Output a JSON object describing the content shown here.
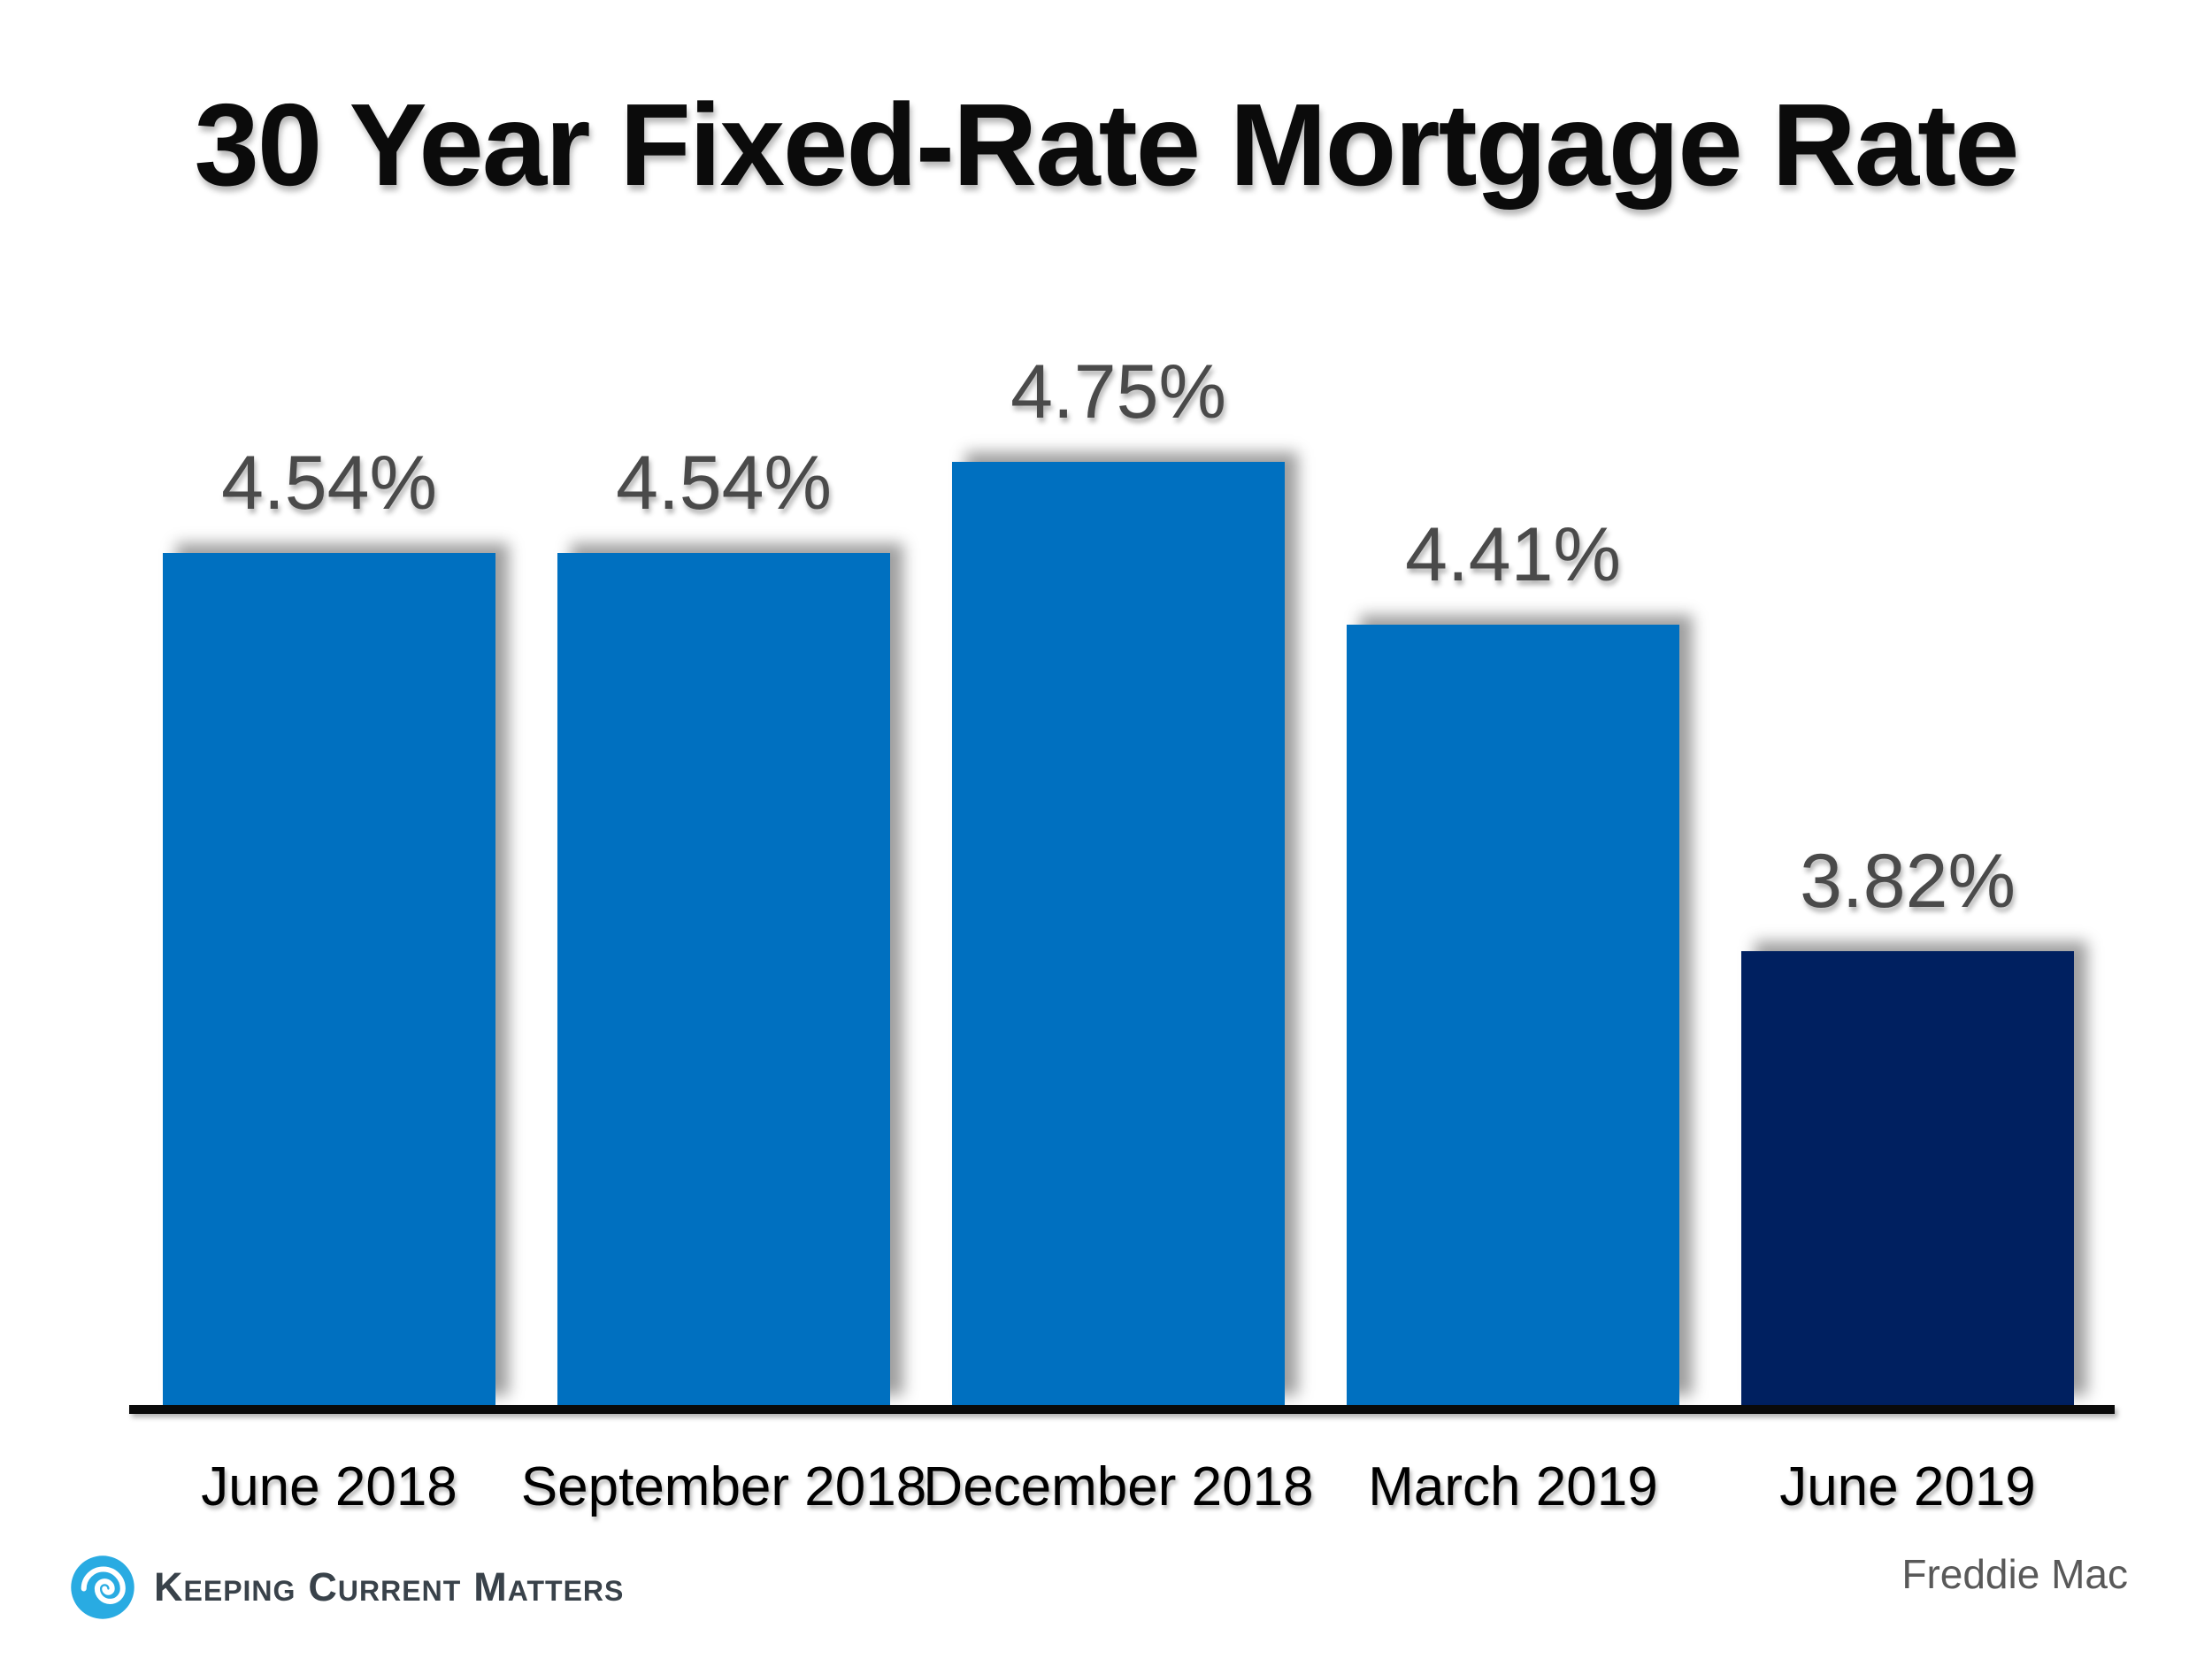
{
  "page": {
    "background": "#ffffff"
  },
  "chart_data": {
    "type": "bar",
    "title": "30 Year Fixed-Rate Mortgage Rate",
    "categories": [
      "June 2018",
      "September 2018",
      "December 2018",
      "March 2019",
      "June 2019"
    ],
    "values": [
      4.54,
      4.54,
      4.75,
      4.41,
      3.82
    ],
    "value_labels": [
      "4.54%",
      "4.54%",
      "4.75%",
      "4.41%",
      "3.82%"
    ],
    "ylim": [
      3.0,
      4.9
    ],
    "grid": false,
    "legend": false,
    "bar_colors": [
      "#0070C0",
      "#0070C0",
      "#0070C0",
      "#0070C0",
      "#002060"
    ],
    "bar_default_color": "#0070C0",
    "highlight_color": "#002060",
    "value_label_color": "#4a4a4a",
    "category_label_color": "#000000",
    "axis_line_color": "#0a0a0a",
    "source": "Freddie Mac"
  },
  "footer": {
    "brand_words": [
      "Keeping",
      "Current",
      "Matters"
    ],
    "brand_color": "#39424A",
    "swirl_color": "#29ABE2",
    "source_color": "#595959"
  }
}
